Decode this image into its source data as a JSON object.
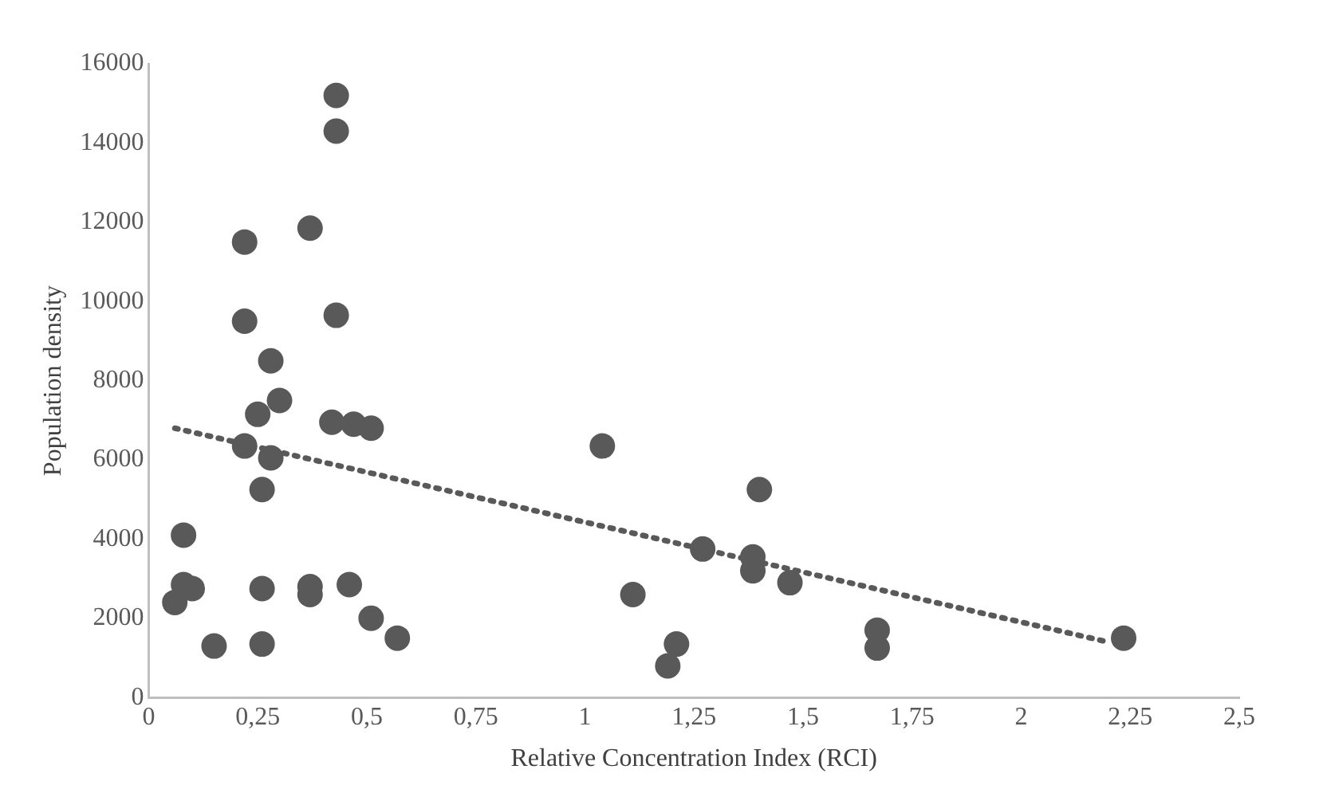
{
  "chart_data": {
    "type": "scatter",
    "xlabel": "Relative Concentration Index (RCI)",
    "ylabel": "Population density",
    "marker": "circle",
    "grid": false,
    "legend": false,
    "xlim": [
      0,
      2.5
    ],
    "ylim": [
      0,
      16000
    ],
    "xticks": [
      0,
      {
        "value": 0.25,
        "label": "0,25"
      },
      {
        "value": 0.5,
        "label": "0,5"
      },
      {
        "value": 0.75,
        "label": "0,75"
      },
      1,
      {
        "value": 1.25,
        "label": "1,25"
      },
      {
        "value": 1.5,
        "label": "1,5"
      },
      {
        "value": 1.75,
        "label": "1,75"
      },
      2,
      {
        "value": 2.25,
        "label": "2,25"
      },
      {
        "value": 2.5,
        "label": "2,5"
      }
    ],
    "yticks": [
      0,
      2000,
      4000,
      6000,
      8000,
      10000,
      12000,
      14000,
      16000
    ],
    "series": [
      {
        "color": "#595959",
        "x": [
          0.43,
          0.43,
          0.37,
          0.22,
          0.22,
          0.43,
          0.28,
          0.3,
          0.25,
          0.42,
          0.47,
          0.51,
          0.22,
          0.28,
          0.26,
          0.08,
          0.08,
          0.1,
          0.06,
          0.26,
          0.37,
          0.37,
          0.46,
          0.51,
          0.57,
          0.15,
          0.26,
          1.04,
          1.11,
          1.21,
          1.19,
          1.27,
          1.4,
          1.385,
          1.385,
          1.47,
          1.67,
          1.67,
          2.235
        ],
        "values": [
          15200,
          14300,
          11850,
          11500,
          9500,
          9650,
          8500,
          7500,
          7150,
          6950,
          6900,
          6800,
          6350,
          6050,
          5250,
          4100,
          2850,
          2750,
          2400,
          2750,
          2800,
          2600,
          2850,
          2000,
          1500,
          1300,
          1350,
          6350,
          2600,
          1350,
          800,
          3750,
          5250,
          3550,
          3200,
          2900,
          1700,
          1250,
          1500
        ]
      },
      {
        "type": "line",
        "color": "#595959",
        "line_style": "dotted",
        "marker": "none",
        "x": [
          0.06,
          2.2
        ],
        "values": [
          6800,
          1400
        ]
      }
    ]
  }
}
